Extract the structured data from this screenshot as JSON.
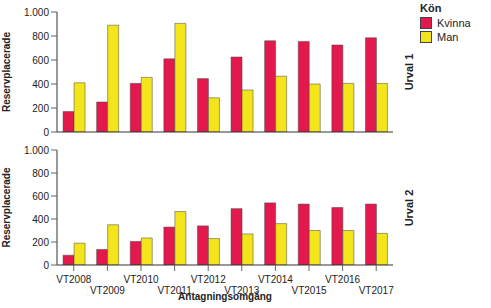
{
  "chart_data": [
    {
      "type": "bar",
      "title": "Urval 1",
      "y_label": "Reservplacerade",
      "categories": [
        "VT2008",
        "VT2009",
        "VT2010",
        "VT2011",
        "VT2012",
        "VT2013",
        "VT2014",
        "VT2015",
        "VT2016",
        "VT2017"
      ],
      "series": [
        {
          "name": "Kvinna",
          "color": "#e3194d",
          "values": [
            170,
            250,
            405,
            610,
            445,
            625,
            760,
            755,
            725,
            785
          ]
        },
        {
          "name": "Man",
          "color": "#f3e41c",
          "values": [
            410,
            890,
            455,
            905,
            285,
            350,
            465,
            400,
            405,
            405
          ]
        }
      ],
      "ylim": [
        0,
        1000
      ],
      "yticks": [
        0,
        200,
        400,
        600,
        800,
        {
          "value": 1000,
          "label": "1.000"
        }
      ],
      "grid": false,
      "tick_labels": "y",
      "legend": "right",
      "legend_title": "Kön"
    },
    {
      "type": "bar",
      "title": "Urval 2",
      "y_label": "Reservplacerade",
      "x_label": "Antagningsomgång",
      "categories": [
        "VT2008",
        "VT2009",
        "VT2010",
        "VT2011",
        "VT2012",
        "VT2013",
        "VT2014",
        "VT2015",
        "VT2016",
        "VT2017"
      ],
      "series": [
        {
          "name": "Kvinna",
          "color": "#e3194d",
          "values": [
            85,
            135,
            205,
            330,
            340,
            490,
            540,
            530,
            500,
            530
          ]
        },
        {
          "name": "Man",
          "color": "#f3e41c",
          "values": [
            190,
            350,
            235,
            465,
            230,
            270,
            360,
            300,
            300,
            275
          ]
        }
      ],
      "ylim": [
        0,
        1000
      ],
      "yticks": [
        0,
        200,
        400,
        600,
        800,
        {
          "value": 1000,
          "label": "1.000"
        }
      ],
      "grid": false
    }
  ]
}
